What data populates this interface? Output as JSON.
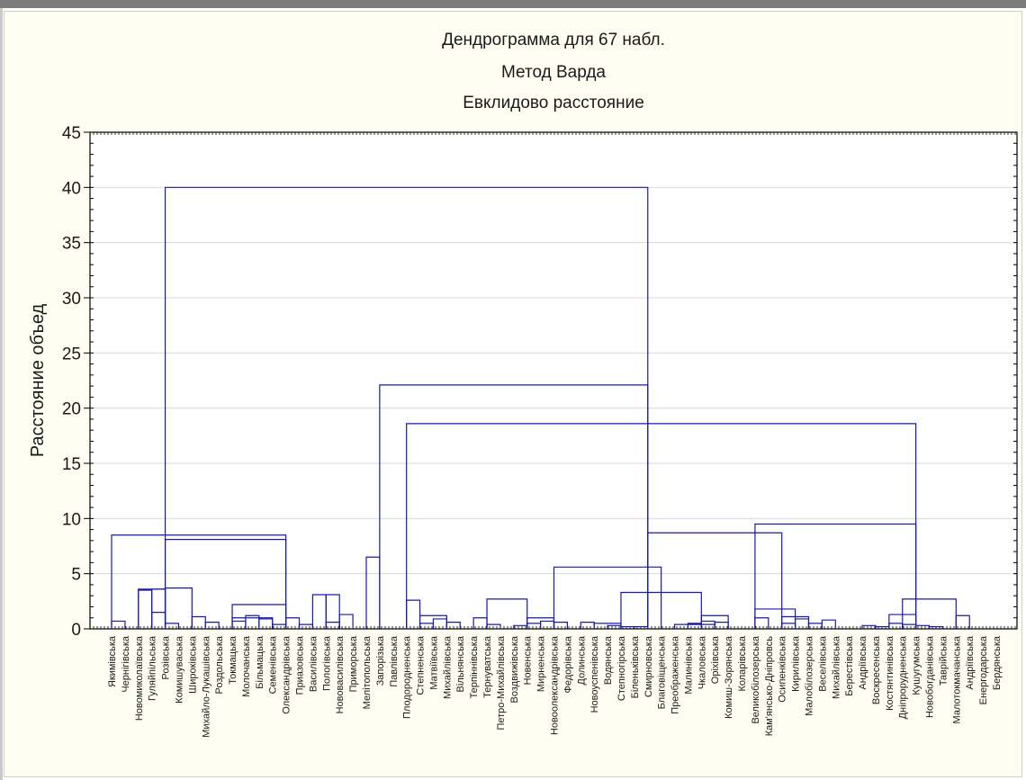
{
  "chart_data": {
    "type": "dendrogram",
    "title": "Дендрограмма для 67 набл.",
    "subtitle": "Метод Варда",
    "subtitle2": "Евклидово расстояние",
    "xlabel": "",
    "ylabel": "Расстояние объед",
    "ylim": [
      0,
      45
    ],
    "yticks": [
      0,
      5,
      10,
      15,
      20,
      25,
      30,
      35,
      40,
      45
    ],
    "grid": true,
    "line_color": "#1a1aa8",
    "leaves": [
      "Якимівська",
      "Чернігівська",
      "Новомиколаївська",
      "Гуляйпільська",
      "Розівська",
      "Комишуваська",
      "Широківська",
      "Михайло-Лукашівська",
      "Роздольська",
      "Токмацька",
      "Молочанська",
      "Більмацька",
      "Семенівська",
      "Олександрівська",
      "Приазовська",
      "Василівська",
      "Пологівська",
      "Нововасилівська",
      "Приморська",
      "Мелітопольська",
      "Запорізька",
      "Павлівська",
      "Плодородненська",
      "Степненська",
      "Матвіївська",
      "Михайлівська",
      "Вільнянська",
      "Терпіннівська",
      "Тернуватська",
      "Петро-Михайлівська",
      "Воздвижівська",
      "Новенська",
      "Мирненська",
      "Новоолександрівська",
      "Федорівська",
      "Долинська",
      "Новоуспенівська",
      "Водянська",
      "Степногірська",
      "Біленьківська",
      "Смирновська",
      "Благовіщенська",
      "Преображенська",
      "Малинівська",
      "Чкаловська",
      "Оріхівська",
      "Комиш-Зорянська",
      "Коларівська",
      "Великобілозерська",
      "Кам'янсько-Дніпровсь",
      "Осипенківська",
      "Кирилівська",
      "Малобілозерська",
      "Веселівська",
      "Михайлівська",
      "Берестівська",
      "Андріївська",
      "Воскресенська",
      "Костянтинівська",
      "Дніпрорудненська",
      "Кушугумська",
      "Новобогданівська",
      "Таврійська",
      "Малотокмачанська",
      "Андріївська",
      "Енергодарська",
      "Бердянська"
    ],
    "merges": [
      [
        0,
        1,
        0.7
      ],
      [
        12,
        13,
        0.4
      ],
      [
        11,
        12,
        0.9
      ],
      [
        10,
        11,
        1.2
      ],
      [
        14,
        15,
        0.4
      ],
      [
        13,
        14,
        1.0
      ],
      [
        16,
        17,
        0.6
      ],
      [
        17,
        18,
        1.3
      ],
      [
        16,
        17,
        3.1
      ],
      [
        15,
        16,
        3.1
      ],
      [
        9,
        10,
        0.7
      ],
      [
        9,
        12,
        1.0
      ],
      [
        9,
        13,
        2.2
      ],
      [
        7,
        8,
        0.6
      ],
      [
        6,
        7,
        1.1
      ],
      [
        4,
        5,
        0.5
      ],
      [
        3,
        4,
        1.5
      ],
      [
        2,
        3,
        3.5
      ],
      [
        3,
        4,
        3.6
      ],
      [
        2,
        4,
        3.6
      ],
      [
        4,
        6,
        3.7
      ],
      [
        4,
        13,
        8.1
      ],
      [
        0,
        13,
        8.5
      ],
      [
        19,
        20,
        6.5
      ],
      [
        23,
        24,
        0.5
      ],
      [
        24,
        25,
        0.9
      ],
      [
        25,
        26,
        0.6
      ],
      [
        23,
        25,
        1.2
      ],
      [
        22,
        23,
        2.6
      ],
      [
        28,
        29,
        0.4
      ],
      [
        27,
        28,
        1.0
      ],
      [
        30,
        31,
        0.3
      ],
      [
        31,
        32,
        0.5
      ],
      [
        32,
        33,
        0.7
      ],
      [
        33,
        34,
        0.6
      ],
      [
        31,
        33,
        1.0
      ],
      [
        28,
        31,
        2.7
      ],
      [
        37,
        38,
        0.3
      ],
      [
        38,
        39,
        0.2
      ],
      [
        39,
        40,
        0.2
      ],
      [
        36,
        38,
        0.5
      ],
      [
        35,
        36,
        0.6
      ],
      [
        43,
        44,
        0.5
      ],
      [
        44,
        45,
        0.7
      ],
      [
        45,
        46,
        0.6
      ],
      [
        44,
        46,
        1.2
      ],
      [
        42,
        45,
        0.4
      ],
      [
        38,
        44,
        3.3
      ],
      [
        48,
        49,
        1.0
      ],
      [
        50,
        51,
        0.5
      ],
      [
        51,
        52,
        0.9
      ],
      [
        52,
        53,
        0.5
      ],
      [
        53,
        54,
        0.8
      ],
      [
        50,
        52,
        1.1
      ],
      [
        48,
        51,
        1.8
      ],
      [
        56,
        57,
        0.3
      ],
      [
        57,
        58,
        0.2
      ],
      [
        58,
        59,
        0.5
      ],
      [
        59,
        60,
        0.4
      ],
      [
        60,
        61,
        0.3
      ],
      [
        61,
        62,
        0.2
      ],
      [
        58,
        60,
        1.3
      ],
      [
        63,
        64,
        1.2
      ],
      [
        59,
        63,
        2.7
      ],
      [
        33,
        41,
        5.6
      ],
      [
        40,
        50,
        8.7
      ],
      [
        48,
        60,
        9.5
      ],
      [
        22,
        60,
        18.6
      ],
      [
        20,
        40,
        22.1
      ],
      [
        4,
        40,
        40.0
      ]
    ]
  }
}
